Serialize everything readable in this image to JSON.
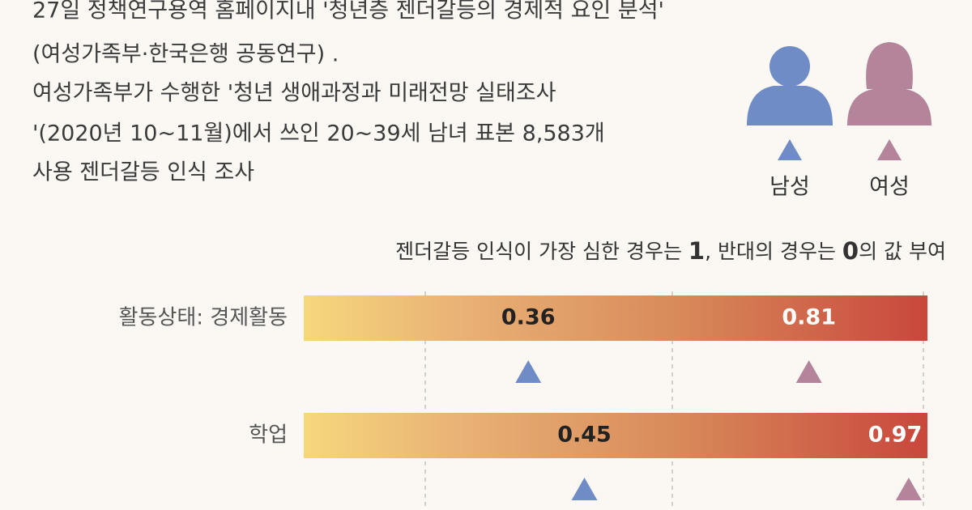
{
  "chart_data": {
    "type": "dot",
    "subtitle": [
      "27일 정책연구용역 홈페이지내 '청년층 젠더갈등의 경제적 요인 분석'",
      "(여성가족부·한국은행 공동연구) .",
      "여성가족부가 수행한 '청년 생애과정과 미래전망 실태조사",
      "'(2020년 10~11월)에서 쓰인 20~39세 남녀 표본 8,583개",
      "사용 젠더갈등 인식 조사"
    ],
    "note": [
      "젠더갈등 인식이 가장 심한 경우는 ",
      "1",
      ", 반대의 경우는 ",
      "0",
      "의 값 부여"
    ],
    "categories": [
      "활동상태: 경제활동",
      "학업"
    ],
    "xlim": [
      0,
      1
    ],
    "series": [
      {
        "name": "남성",
        "color": "#6f8cc6",
        "values": [
          0.36,
          0.45
        ]
      },
      {
        "name": "여성",
        "color": "#b3849a",
        "values": [
          0.81,
          0.97
        ]
      }
    ]
  }
}
